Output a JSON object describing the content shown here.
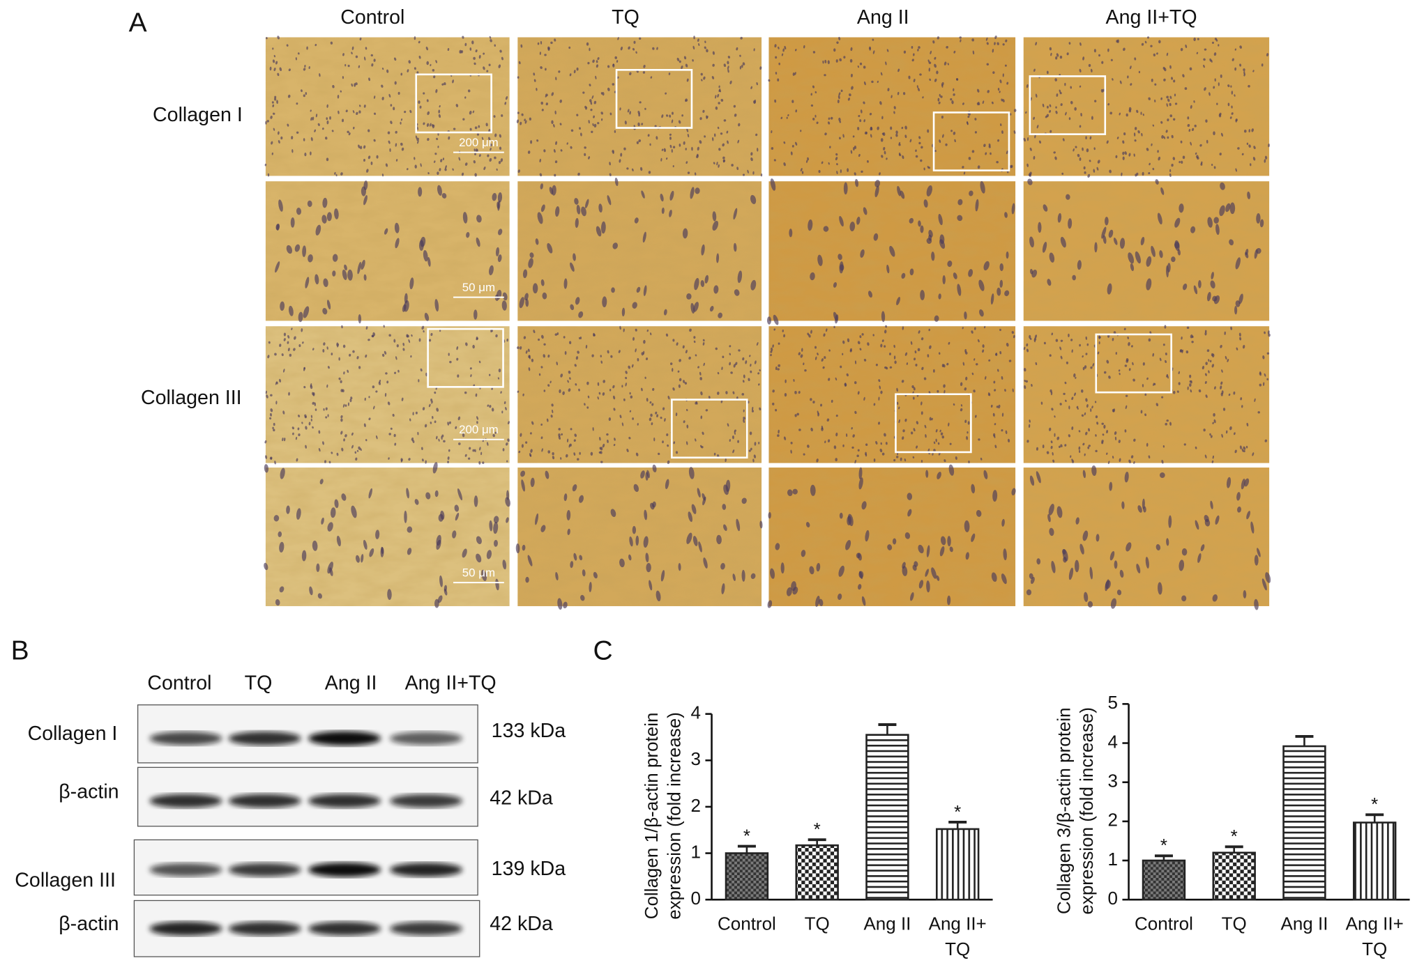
{
  "panel_labels": [
    "A",
    "B",
    "C"
  ],
  "micrographs": {
    "columns": [
      "Control",
      "TQ",
      "Ang II",
      "Ang II+TQ"
    ],
    "rows": [
      "Collagen I",
      "Collagen III"
    ],
    "scale_bars": [
      "200 μm",
      "50 μm",
      "200 μm",
      "50 μm"
    ]
  },
  "western_blot": {
    "lanes": [
      "Control",
      "TQ",
      "Ang II",
      "Ang II+TQ"
    ],
    "rows": [
      {
        "label": "Collagen I",
        "size": "133 kDa"
      },
      {
        "label": "β-actin",
        "size": "42 kDa"
      },
      {
        "label": "Collagen III",
        "size": "139 kDa"
      },
      {
        "label": "β-actin",
        "size": "42 kDa"
      }
    ]
  },
  "chart_data": [
    {
      "type": "bar",
      "y_label": [
        "Collagen 1/β-actin protein",
        "expression (fold increase)"
      ],
      "categories": [
        "Control",
        "TQ",
        "Ang II",
        "Ang II+TQ"
      ],
      "values": [
        1.0,
        1.17,
        3.55,
        1.52
      ],
      "errors": [
        0.15,
        0.12,
        0.22,
        0.15
      ],
      "annotations": [
        "*",
        "*",
        null,
        "*"
      ],
      "color": "#222222",
      "ylim": [
        0,
        4
      ],
      "yticks": [
        0,
        1,
        2,
        3,
        4
      ]
    },
    {
      "type": "bar",
      "y_label": [
        "Collagen 3/β-actin protein",
        "expression (fold increase)"
      ],
      "categories": [
        "Control",
        "TQ",
        "Ang II",
        "Ang II+TQ"
      ],
      "values": [
        1.0,
        1.2,
        3.92,
        1.97
      ],
      "errors": [
        0.12,
        0.15,
        0.25,
        0.2
      ],
      "annotations": [
        "*",
        "*",
        null,
        "*"
      ],
      "color": "#222222",
      "ylim": [
        0,
        5
      ],
      "yticks": [
        0,
        1,
        2,
        3,
        4,
        5
      ]
    }
  ]
}
